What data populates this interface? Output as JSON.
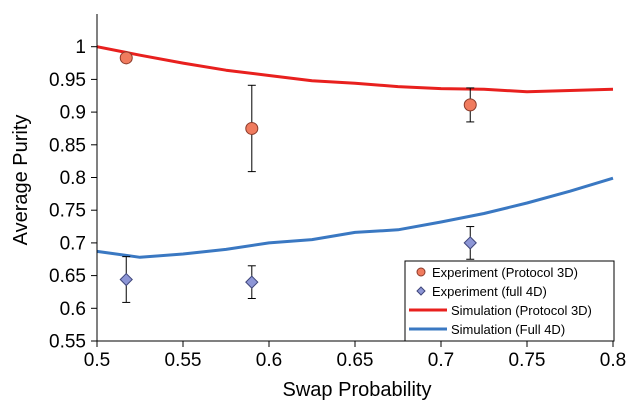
{
  "chart_data": {
    "type": "line",
    "xlabel": "Swap Probability",
    "ylabel": "Average Purity",
    "xlim": [
      0.5,
      0.8
    ],
    "ylim": [
      0.55,
      1.05
    ],
    "x_ticks": [
      0.5,
      0.55,
      0.6,
      0.65,
      0.7,
      0.75,
      0.8
    ],
    "x_tick_labels": [
      "0.5",
      "0.55",
      "0.6",
      "0.65",
      "0.7",
      "0.75",
      "0.8"
    ],
    "y_ticks": [
      0.55,
      0.6,
      0.65,
      0.7,
      0.75,
      0.8,
      0.85,
      0.9,
      0.95,
      1
    ],
    "y_tick_labels": [
      "0.55",
      "0.6",
      "0.65",
      "0.7",
      "0.75",
      "0.8",
      "0.85",
      "0.9",
      "0.95",
      "1"
    ],
    "grid": false,
    "legend_position": "bottom-right",
    "series": [
      {
        "name": "Experiment (Protocol 3D)",
        "kind": "points",
        "marker": "circle",
        "color": "#f07b5e",
        "points": [
          {
            "x": 0.517,
            "y": 0.983,
            "err": 0.006
          },
          {
            "x": 0.59,
            "y": 0.875,
            "err": 0.066
          },
          {
            "x": 0.717,
            "y": 0.911,
            "err": 0.026
          }
        ]
      },
      {
        "name": "Experiment (full 4D)",
        "kind": "points",
        "marker": "diamond",
        "color": "#8d96d6",
        "points": [
          {
            "x": 0.517,
            "y": 0.644,
            "err": 0.035
          },
          {
            "x": 0.59,
            "y": 0.64,
            "err": 0.025
          },
          {
            "x": 0.717,
            "y": 0.7,
            "err": 0.025
          }
        ]
      },
      {
        "name": "Simulation (Protocol 3D)",
        "kind": "line",
        "color": "#e8201e",
        "x": [
          0.5,
          0.525,
          0.55,
          0.575,
          0.6,
          0.625,
          0.65,
          0.675,
          0.7,
          0.725,
          0.75,
          0.775,
          0.8
        ],
        "y": [
          1.0,
          0.987,
          0.975,
          0.964,
          0.956,
          0.948,
          0.944,
          0.939,
          0.936,
          0.935,
          0.931,
          0.933,
          0.935
        ]
      },
      {
        "name": "Simulation (Full 4D)",
        "kind": "line",
        "color": "#3a78c2",
        "x": [
          0.5,
          0.525,
          0.55,
          0.575,
          0.6,
          0.625,
          0.65,
          0.675,
          0.7,
          0.725,
          0.75,
          0.775,
          0.8
        ],
        "y": [
          0.687,
          0.678,
          0.683,
          0.69,
          0.7,
          0.705,
          0.716,
          0.72,
          0.732,
          0.745,
          0.761,
          0.779,
          0.799
        ]
      }
    ],
    "legend": [
      {
        "label": "Experiment (Protocol 3D)",
        "marker": "circle",
        "color": "#f07b5e"
      },
      {
        "label": "Experiment (full 4D)",
        "marker": "diamond",
        "color": "#8d96d6"
      },
      {
        "label": "Simulation (Protocol 3D)",
        "marker": "line",
        "color": "#e8201e"
      },
      {
        "label": "Simulation (Full 4D)",
        "marker": "line",
        "color": "#3a78c2"
      }
    ]
  }
}
